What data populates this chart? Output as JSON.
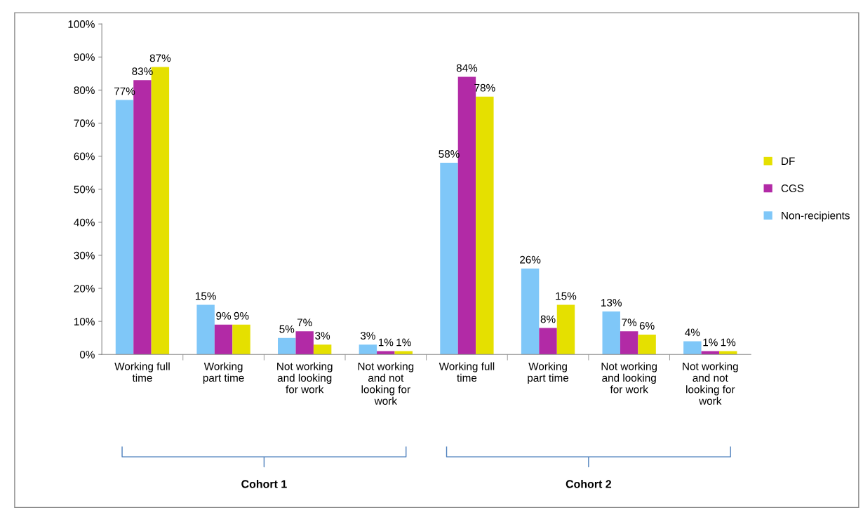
{
  "chart_data": {
    "type": "bar",
    "categories": [
      "Working full\ntime",
      "Working\npart time",
      "Not working\nand looking\nfor work",
      "Not working\nand not\nlooking for\nwork",
      "Working full\ntime",
      "Working\npart time",
      "Not working\nand looking\nfor work",
      "Not working\nand not\nlooking for\nwork"
    ],
    "series": [
      {
        "name": "Non-recipients",
        "color": "#7fc7f8",
        "values": [
          77,
          15,
          5,
          3,
          58,
          26,
          13,
          4
        ],
        "value_labels": [
          "77%",
          "15%",
          "5%",
          "3%",
          "58%",
          "26%",
          "13%",
          "4%"
        ]
      },
      {
        "name": "CGS",
        "color": "#b22aa6",
        "values": [
          83,
          9,
          7,
          1,
          84,
          8,
          7,
          1
        ],
        "value_labels": [
          "83%",
          "9%",
          "7%",
          "1%",
          "84%",
          "8%",
          "7%",
          "1%"
        ]
      },
      {
        "name": "DF",
        "color": "#e5e000",
        "values": [
          87,
          9,
          3,
          1,
          78,
          15,
          6,
          1
        ],
        "value_labels": [
          "87%",
          "9%",
          "3%",
          "1%",
          "78%",
          "15%",
          "6%",
          "1%"
        ]
      }
    ],
    "ylim": [
      0,
      100
    ],
    "yticks": [
      {
        "value": 0,
        "label": "0%"
      },
      {
        "value": 10,
        "label": "10%"
      },
      {
        "value": 20,
        "label": "20%"
      },
      {
        "value": 30,
        "label": "30%"
      },
      {
        "value": 40,
        "label": "40%"
      },
      {
        "value": 50,
        "label": "50%"
      },
      {
        "value": 60,
        "label": "60%"
      },
      {
        "value": 70,
        "label": "70%"
      },
      {
        "value": 80,
        "label": "80%"
      },
      {
        "value": 90,
        "label": "90%"
      },
      {
        "value": 100,
        "label": "100%"
      }
    ],
    "annotations": [
      "Cohort 1",
      "Cohort 2"
    ],
    "legend": "right",
    "grid": false
  }
}
